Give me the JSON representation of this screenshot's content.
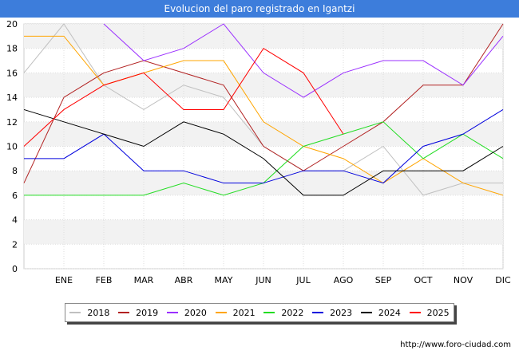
{
  "chart_data": {
    "type": "line",
    "title": "Evolucion del paro registrado en Igantzi",
    "categories": [
      "",
      "ENE",
      "FEB",
      "MAR",
      "ABR",
      "MAY",
      "JUN",
      "JUL",
      "AGO",
      "SEP",
      "OCT",
      "NOV",
      "DIC"
    ],
    "ylim": [
      0,
      20
    ],
    "yticks": [
      0,
      2,
      4,
      6,
      8,
      10,
      12,
      14,
      16,
      18,
      20
    ],
    "grid": true,
    "legend_position": "bottom",
    "series": [
      {
        "name": "2018",
        "color": "#c0c0c0",
        "values": [
          16,
          20,
          15,
          13,
          15,
          14,
          10,
          8,
          8,
          10,
          6,
          7,
          7
        ]
      },
      {
        "name": "2019",
        "color": "#b22222",
        "values": [
          7,
          14,
          16,
          17,
          16,
          15,
          10,
          8,
          10,
          12,
          15,
          15,
          20
        ]
      },
      {
        "name": "2020",
        "color": "#9b30ff",
        "values": [
          null,
          null,
          20,
          17,
          18,
          20,
          16,
          14,
          16,
          17,
          17,
          15,
          19
        ]
      },
      {
        "name": "2021",
        "color": "#ffa500",
        "values": [
          19,
          19,
          15,
          16,
          17,
          17,
          12,
          10,
          9,
          7,
          9,
          7,
          6
        ]
      },
      {
        "name": "2022",
        "color": "#22dd22",
        "values": [
          6,
          6,
          6,
          6,
          7,
          6,
          7,
          10,
          11,
          12,
          9,
          11,
          9
        ]
      },
      {
        "name": "2023",
        "color": "#0000dd",
        "values": [
          9,
          9,
          11,
          8,
          8,
          7,
          7,
          8,
          8,
          7,
          10,
          11,
          13
        ]
      },
      {
        "name": "2024",
        "color": "#000000",
        "values": [
          13,
          12,
          11,
          10,
          12,
          11,
          9,
          6,
          6,
          8,
          8,
          8,
          10
        ]
      },
      {
        "name": "2025",
        "color": "#ff0000",
        "values": [
          10,
          13,
          15,
          16,
          13,
          13,
          18,
          16,
          11,
          null,
          null,
          null,
          null
        ]
      }
    ]
  },
  "footer": {
    "source": "http://www.foro-ciudad.com"
  }
}
